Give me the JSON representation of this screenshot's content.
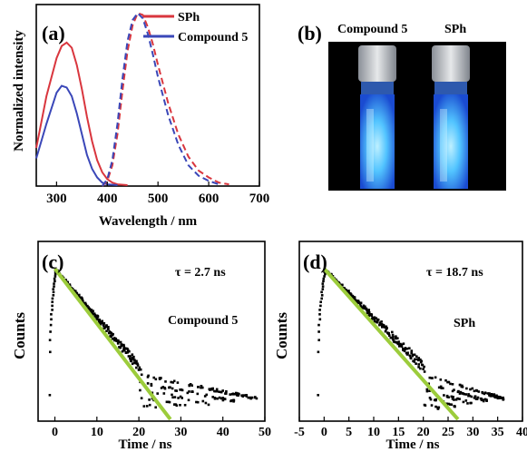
{
  "panels": {
    "a": {
      "label": "(a)",
      "chart_data": {
        "type": "line",
        "title": "",
        "xlabel": "Wavelength / nm",
        "ylabel": "Normalized intensity",
        "xlim": [
          260,
          700
        ],
        "ylim": [
          0,
          1.05
        ],
        "xticks": [
          300,
          400,
          500,
          600,
          700
        ],
        "legend": "top-right",
        "series": [
          {
            "name": "SPh",
            "color": "#d9363e",
            "kind": "absorption",
            "x": [
              260,
              280,
              300,
              310,
              320,
              330,
              340,
              350,
              360,
              370,
              380,
              390,
              400,
              410,
              420,
              440
            ],
            "y": [
              0.22,
              0.52,
              0.74,
              0.81,
              0.83,
              0.8,
              0.7,
              0.56,
              0.4,
              0.26,
              0.15,
              0.08,
              0.04,
              0.02,
              0.01,
              0.005
            ]
          },
          {
            "name": "Compound 5",
            "color": "#3a47b8",
            "kind": "absorption",
            "x": [
              260,
              280,
              300,
              310,
              320,
              330,
              340,
              350,
              360,
              370,
              380,
              390,
              400,
              420
            ],
            "y": [
              0.16,
              0.36,
              0.54,
              0.58,
              0.57,
              0.52,
              0.42,
              0.3,
              0.18,
              0.1,
              0.05,
              0.02,
              0.01,
              0.005
            ]
          },
          {
            "name": "SPh",
            "color": "#d9363e",
            "kind": "emission",
            "x": [
              390,
              400,
              410,
              420,
              430,
              440,
              450,
              460,
              470,
              480,
              490,
              500,
              520,
              540,
              560,
              580,
              600,
              620,
              640
            ],
            "y": [
              0.0,
              0.03,
              0.12,
              0.3,
              0.55,
              0.78,
              0.93,
              1.0,
              0.99,
              0.92,
              0.82,
              0.7,
              0.48,
              0.3,
              0.17,
              0.09,
              0.05,
              0.02,
              0.01
            ]
          },
          {
            "name": "Compound 5",
            "color": "#3a47b8",
            "kind": "emission",
            "x": [
              390,
              400,
              410,
              420,
              430,
              440,
              450,
              460,
              470,
              480,
              490,
              500,
              520,
              540,
              560,
              580,
              600,
              620
            ],
            "y": [
              0.0,
              0.04,
              0.15,
              0.36,
              0.62,
              0.84,
              0.96,
              1.0,
              0.97,
              0.88,
              0.76,
              0.63,
              0.41,
              0.24,
              0.12,
              0.06,
              0.03,
              0.01
            ]
          }
        ]
      }
    },
    "b": {
      "label": "(b)",
      "vial_labels": [
        "Compound 5",
        "SPh"
      ],
      "glow_color": "#3fb6ff"
    },
    "c": {
      "label": "(c)",
      "annotation_tau": "τ = 2.7 ns",
      "annotation_name": "Compound 5",
      "chart_data": {
        "type": "scatter",
        "title": "",
        "xlabel": "Time / ns",
        "ylabel": "Counts",
        "xlim": [
          -4,
          50
        ],
        "xticks": [
          0,
          10,
          20,
          30,
          40,
          50
        ],
        "y_scale": "log",
        "decay_tau_ns": 2.7,
        "fit_color": "#9ccc3b",
        "fit_line": {
          "x": [
            0,
            27.5
          ],
          "y_rel": [
            1.0,
            0.0
          ]
        },
        "points": {
          "rise_start_ns": -1.5,
          "peak_ns": 0,
          "linear_end_ns": 20,
          "tail_end_ns": 48
        }
      }
    },
    "d": {
      "label": "(d)",
      "annotation_tau": "τ = 18.7 ns",
      "annotation_name": "SPh",
      "chart_data": {
        "type": "scatter",
        "title": "",
        "xlabel": "Time / ns",
        "ylabel": "Counts",
        "xlim": [
          -5,
          40
        ],
        "xticks": [
          -5,
          0,
          5,
          10,
          15,
          20,
          25,
          30,
          35,
          40
        ],
        "y_scale": "log",
        "decay_tau_ns": 18.7,
        "fit_color": "#9ccc3b",
        "fit_line": {
          "x": [
            0,
            27
          ],
          "y_rel": [
            1.0,
            0.0
          ]
        },
        "points": {
          "rise_start_ns": -1.5,
          "peak_ns": 0,
          "linear_end_ns": 20,
          "tail_end_ns": 36
        }
      }
    }
  }
}
